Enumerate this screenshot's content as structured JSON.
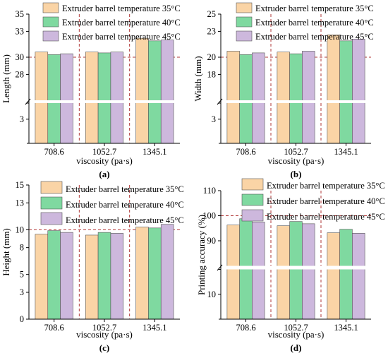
{
  "colors": {
    "series": [
      "#FAD4A6",
      "#7FD9A0",
      "#CDB8DD"
    ],
    "stroke": "#555555",
    "reference_line": "#B23A3A",
    "break_band": "#ffffff"
  },
  "chart_data": [
    {
      "type": "bar",
      "panel_label": "(a)",
      "categories": [
        "708.6",
        "1052.7",
        "1345.1"
      ],
      "series": [
        {
          "name": "Extruder barrel temperature 35°C",
          "values": [
            30.6,
            30.6,
            32.2
          ]
        },
        {
          "name": "Extruder barrel temperature 40°C",
          "values": [
            30.3,
            30.5,
            31.9
          ]
        },
        {
          "name": "Extruder barrel temperature 45°C",
          "values": [
            30.4,
            30.6,
            32.0
          ]
        }
      ],
      "xlabel": "viscosity (pa·s)",
      "ylabel": "Length (mm)",
      "axis_break": true,
      "lower_range": [
        0,
        5
      ],
      "upper_range": [
        25,
        35
      ],
      "yticks": [
        3,
        28,
        30,
        33,
        35
      ],
      "reference_y": 30,
      "legend_position": "top-left"
    },
    {
      "type": "bar",
      "panel_label": "(b)",
      "categories": [
        "708.6",
        "1052.7",
        "1345.1"
      ],
      "series": [
        {
          "name": "Extruder barrel temperature 35°C",
          "values": [
            20.7,
            20.6,
            22.6
          ]
        },
        {
          "name": "Extruder barrel temperature 40°C",
          "values": [
            20.3,
            20.4,
            21.9
          ]
        },
        {
          "name": "Extruder barrel temperature 45°C",
          "values": [
            20.5,
            20.7,
            22.1
          ]
        }
      ],
      "xlabel": "viscosity (pa·s)",
      "ylabel": "Width (mm)",
      "axis_break": true,
      "lower_range": [
        0,
        5
      ],
      "upper_range": [
        15,
        25
      ],
      "yticks": [
        3,
        18,
        20,
        23,
        25
      ],
      "reference_y": 20,
      "legend_position": "top-right"
    },
    {
      "type": "bar",
      "panel_label": "(c)",
      "categories": [
        "708.6",
        "1052.7",
        "1345.1"
      ],
      "series": [
        {
          "name": "Extruder barrel temperature 35°C",
          "values": [
            9.5,
            9.4,
            10.3
          ]
        },
        {
          "name": "Extruder barrel temperature 40°C",
          "values": [
            9.9,
            9.7,
            10.2
          ]
        },
        {
          "name": "Extruder barrel temperature 45°C",
          "values": [
            9.7,
            9.6,
            10.6
          ]
        }
      ],
      "xlabel": "viscosity (pa·s)",
      "ylabel": "Height (mm)",
      "axis_break": false,
      "yrange": [
        0,
        15
      ],
      "yticks": [
        0,
        3,
        5,
        8,
        10,
        13,
        15
      ],
      "reference_y": 10,
      "legend_position": "top-right"
    },
    {
      "type": "bar",
      "panel_label": "(d)",
      "categories": [
        "708.6",
        "1052.7",
        "1345.1"
      ],
      "series": [
        {
          "name": "Extruder barrel temperature 35°C",
          "values": [
            96.3,
            96.0,
            93.2
          ]
        },
        {
          "name": "Extruder barrel temperature 40°C",
          "values": [
            98.8,
            97.7,
            94.6
          ]
        },
        {
          "name": "Extruder barrel temperature 45°C",
          "values": [
            97.5,
            96.8,
            93.0
          ]
        }
      ],
      "xlabel": "viscosity (pa·s)",
      "ylabel": "Printing accuracy (%)",
      "axis_break": true,
      "lower_range": [
        0,
        20
      ],
      "upper_range": [
        80,
        110
      ],
      "yticks": [
        10,
        90,
        100,
        110
      ],
      "reference_y": 100,
      "legend_position": "top-right"
    }
  ]
}
